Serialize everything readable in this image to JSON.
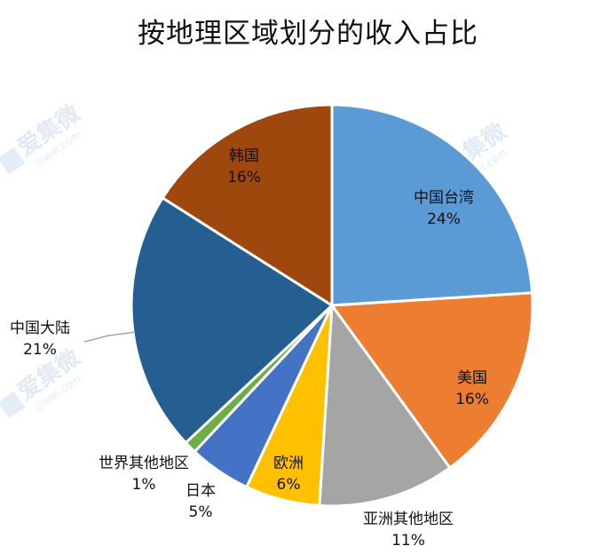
{
  "chart_data": {
    "type": "pie",
    "title": "按地理区域划分的收入占比",
    "slices": [
      {
        "label": "中国台湾",
        "value": 24,
        "value_label": "24%",
        "color": "#5b9bd5"
      },
      {
        "label": "美国",
        "value": 16,
        "value_label": "16%",
        "color": "#ed7d31"
      },
      {
        "label": "亚洲其他地区",
        "value": 11,
        "value_label": "11%",
        "color": "#a5a5a5"
      },
      {
        "label": "欧洲",
        "value": 6,
        "value_label": "6%",
        "color": "#ffc000"
      },
      {
        "label": "日本",
        "value": 5,
        "value_label": "5%",
        "color": "#4472c4"
      },
      {
        "label": "世界其他地区",
        "value": 1,
        "value_label": "1%",
        "color": "#70ad47"
      },
      {
        "label": "中国大陆",
        "value": 21,
        "value_label": "21%",
        "color": "#255e91"
      },
      {
        "label": "韩国",
        "value": 16,
        "value_label": "16%",
        "color": "#9e480e"
      }
    ]
  },
  "watermark": {
    "brand": "爱集微",
    "domain": "ijiwei.com"
  }
}
